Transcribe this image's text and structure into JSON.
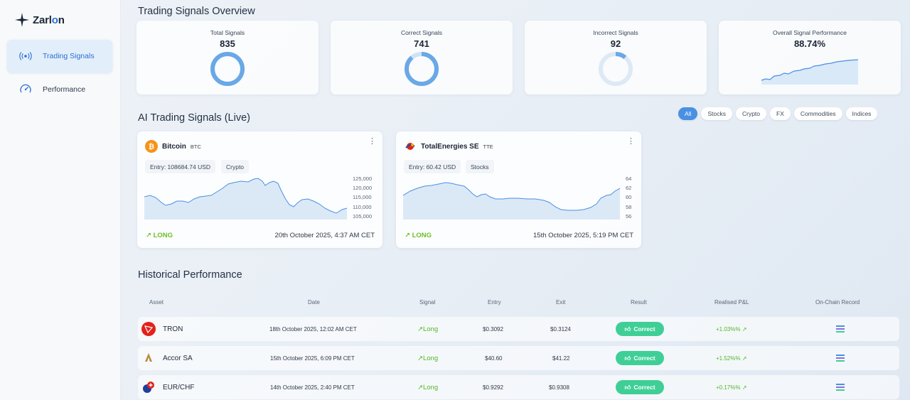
{
  "brand": {
    "name_prefix": "Zarl",
    "name_accent": "o",
    "name_suffix": "n"
  },
  "sidebar": {
    "items": [
      {
        "label": "Trading Signals",
        "icon": "radio-waves-icon",
        "active": true
      },
      {
        "label": "Performance",
        "icon": "gauge-icon",
        "active": false
      }
    ]
  },
  "overview": {
    "title": "Trading Signals Overview",
    "stats": [
      {
        "label": "Total Signals",
        "value": "835",
        "fill": 1.0
      },
      {
        "label": "Correct Signals",
        "value": "741",
        "fill": 0.887
      },
      {
        "label": "Incorrect Signals",
        "value": "92",
        "fill": 0.11
      },
      {
        "label": "Overall Signal Performance",
        "value": "88.74%"
      }
    ]
  },
  "live": {
    "title": "AI Trading Signals (Live)",
    "filters": [
      "All",
      "Stocks",
      "Crypto",
      "FX",
      "Commodities",
      "Indices"
    ],
    "active_filter": "All",
    "signals": [
      {
        "name": "Bitcoin",
        "ticker": "BTC",
        "entry": "Entry: 108684.74 USD",
        "category": "Crypto",
        "direction": "LONG",
        "time": "20th October 2025, 4:37 AM CET",
        "axis": [
          "125,000",
          "120,000",
          "115,000",
          "110,000",
          "105,000"
        ]
      },
      {
        "name": "TotalEnergies SE",
        "ticker": "TTE",
        "entry": "Entry: 60.42 USD",
        "category": "Stocks",
        "direction": "LONG",
        "time": "15th October 2025, 5:19 PM CET",
        "axis": [
          "64",
          "62",
          "60",
          "58",
          "56"
        ]
      }
    ]
  },
  "history": {
    "title": "Historical Performance",
    "columns": [
      "Asset",
      "Date",
      "Signal",
      "Entry",
      "Exit",
      "Result",
      "Realised P&L",
      "On-Chain Record"
    ],
    "rows": [
      {
        "asset": "TRON",
        "date": "18th October 2025, 12:02 AM CET",
        "signal": "Long",
        "entry": "$0.3092",
        "exit": "$0.3124",
        "result": "Correct",
        "pnl": "+1.03%%"
      },
      {
        "asset": "Accor SA",
        "date": "15th October 2025, 6:09 PM CET",
        "signal": "Long",
        "entry": "$40.60",
        "exit": "$41.22",
        "result": "Correct",
        "pnl": "+1.52%%"
      },
      {
        "asset": "EUR/CHF",
        "date": "14th October 2025, 2:40 PM CET",
        "signal": "Long",
        "entry": "$0.9292",
        "exit": "$0.9308",
        "result": "Correct",
        "pnl": "+0.17%%"
      }
    ]
  },
  "colors": {
    "accent": "#4a90e2",
    "positive": "#53b62a",
    "correct": "#3fcf96"
  }
}
